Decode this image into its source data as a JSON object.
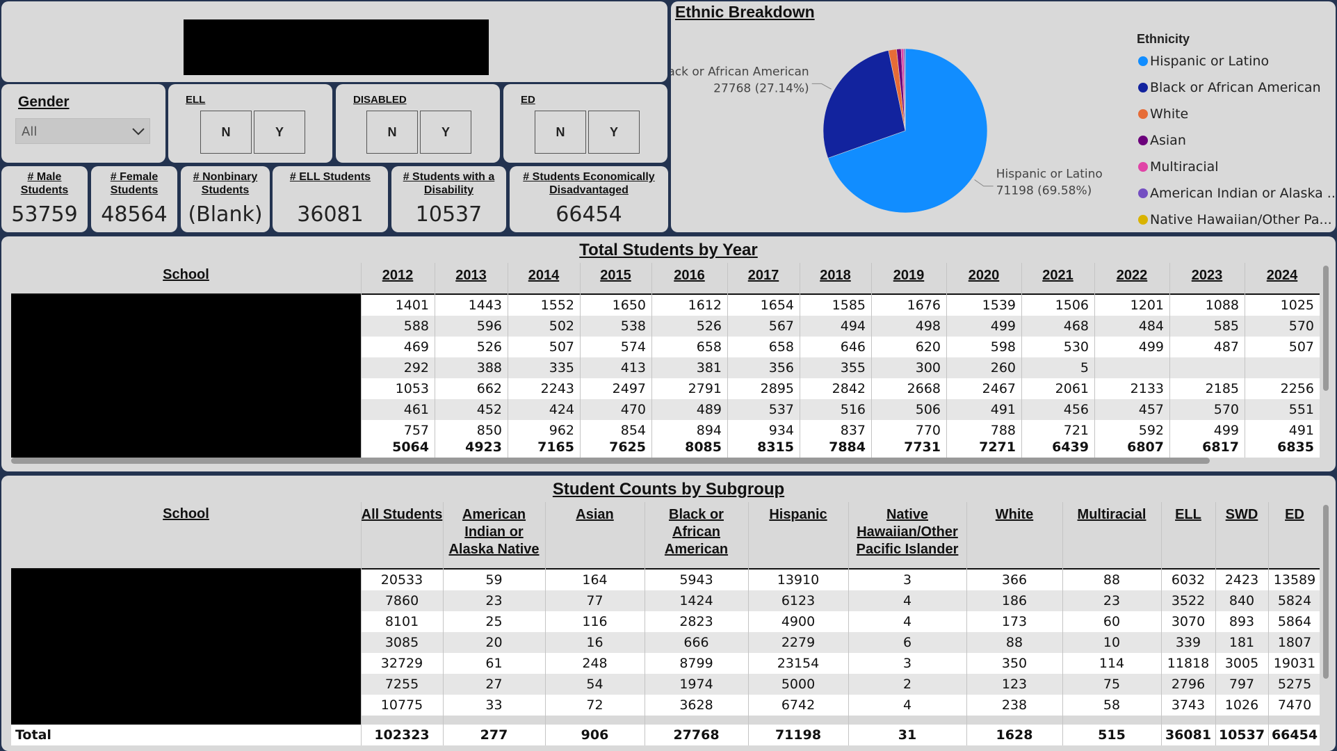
{
  "slicers": {
    "gender": {
      "title": "Gender",
      "selected": "All"
    },
    "ell": {
      "title": "ELL",
      "options": [
        "N",
        "Y"
      ]
    },
    "disabled": {
      "title": "DISABLED",
      "options": [
        "N",
        "Y"
      ]
    },
    "ed": {
      "title": "ED",
      "options": [
        "N",
        "Y"
      ]
    }
  },
  "cards": [
    {
      "label": "# Male Students",
      "value": 53759
    },
    {
      "label": "# Female Students",
      "value": 48564
    },
    {
      "label": "# Nonbinary Students",
      "value": "(Blank)"
    },
    {
      "label": "# ELL Students",
      "value": 36081
    },
    {
      "label": "# Students with a Disability",
      "value": 10537
    },
    {
      "label": "# Students Economically Disadvantaged",
      "value": 66454
    }
  ],
  "pie": {
    "type": "pie",
    "title": "Ethnic Breakdown",
    "legend_title": "Ethnicity",
    "categories": [
      "Hispanic or Latino",
      "Black or African American",
      "White",
      "Asian",
      "Multiracial",
      "American Indian or Alaska ...",
      "Native Hawaiian/Other Pa..."
    ],
    "values": [
      71198,
      27768,
      1628,
      906,
      515,
      277,
      31
    ],
    "value_labels": [
      "71198 (69.58%)",
      "27768 (27.14%)",
      null,
      null,
      null,
      null,
      null
    ],
    "colors": [
      "#118DFF",
      "#12239E",
      "#E66C37",
      "#6B007B",
      "#E044A7",
      "#744EC2",
      "#D9B300"
    ]
  },
  "year_table": {
    "title": "Total Students by Year",
    "columns": [
      "School",
      "2012",
      "2013",
      "2014",
      "2015",
      "2016",
      "2017",
      "2018",
      "2019",
      "2020",
      "2021",
      "2022",
      "2023",
      "2024"
    ],
    "rows": [
      [
        1401,
        1443,
        1552,
        1650,
        1612,
        1654,
        1585,
        1676,
        1539,
        1506,
        1201,
        1088,
        1025
      ],
      [
        588,
        596,
        502,
        538,
        526,
        567,
        494,
        498,
        499,
        468,
        484,
        585,
        570
      ],
      [
        469,
        526,
        507,
        574,
        658,
        658,
        646,
        620,
        598,
        530,
        499,
        487,
        507
      ],
      [
        292,
        388,
        335,
        413,
        381,
        356,
        355,
        300,
        260,
        5,
        null,
        null,
        null
      ],
      [
        1053,
        662,
        2243,
        2497,
        2791,
        2895,
        2842,
        2668,
        2467,
        2061,
        2133,
        2185,
        2256
      ],
      [
        461,
        452,
        424,
        470,
        489,
        537,
        516,
        506,
        491,
        456,
        457,
        570,
        551
      ],
      [
        757,
        850,
        962,
        854,
        894,
        934,
        837,
        770,
        788,
        721,
        592,
        499,
        491
      ]
    ],
    "totals": [
      5064,
      4923,
      7165,
      7625,
      8085,
      8315,
      7884,
      7731,
      7271,
      6439,
      6807,
      6817,
      6835
    ]
  },
  "subgroup_table": {
    "title": "Student Counts by Subgroup",
    "columns": [
      "School",
      "All Students",
      "American Indian or Alaska Native",
      "Asian",
      "Black or African American",
      "Hispanic",
      "Native Hawaiian/Other Pacific Islander",
      "White",
      "Multiracial",
      "ELL",
      "SWD",
      "ED"
    ],
    "rows": [
      [
        20533,
        59,
        164,
        5943,
        13910,
        3,
        366,
        88,
        6032,
        2423,
        13589
      ],
      [
        7860,
        23,
        77,
        1424,
        6123,
        4,
        186,
        23,
        3522,
        840,
        5824
      ],
      [
        8101,
        25,
        116,
        2823,
        4900,
        4,
        173,
        60,
        3070,
        893,
        5864
      ],
      [
        3085,
        20,
        16,
        666,
        2279,
        6,
        88,
        10,
        339,
        181,
        1807
      ],
      [
        32729,
        61,
        248,
        8799,
        23154,
        3,
        350,
        114,
        11818,
        3005,
        19031
      ],
      [
        7255,
        27,
        54,
        1974,
        5000,
        2,
        123,
        75,
        2796,
        797,
        5275
      ],
      [
        10775,
        33,
        72,
        3628,
        6742,
        4,
        238,
        58,
        3743,
        1026,
        7470
      ]
    ],
    "total_label": "Total",
    "totals": [
      102323,
      277,
      906,
      27768,
      71198,
      31,
      1628,
      515,
      36081,
      10537,
      66454
    ]
  }
}
